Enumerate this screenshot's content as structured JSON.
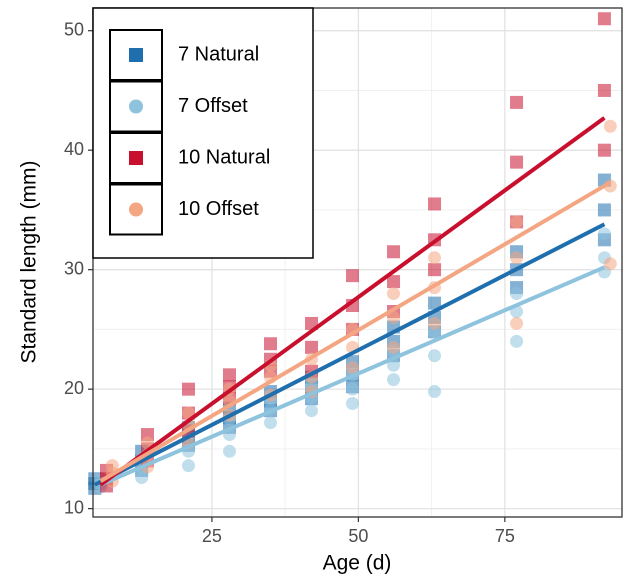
{
  "chart_data": {
    "type": "scatter",
    "x_label": "Age (d)",
    "y_label": "Standard length (mm)",
    "xlim": [
      4.7,
      95
    ],
    "ylim": [
      9.3,
      51.9
    ],
    "xticks": [
      25,
      50,
      75
    ],
    "yticks": [
      10,
      20,
      30,
      40,
      50
    ],
    "grid": true,
    "legend": "top-left",
    "series": [
      {
        "name": "7 Natural",
        "color": "#1f6fae",
        "marker": "square",
        "x": [
          5,
          5,
          5,
          13,
          13,
          13,
          21,
          21,
          21,
          28,
          28,
          28,
          35,
          35,
          35,
          42,
          42,
          42,
          49,
          49,
          49,
          56,
          56,
          56,
          63,
          63,
          63,
          77,
          77,
          77,
          92,
          92,
          92
        ],
        "values": [
          11.7,
          12.1,
          12.5,
          13.2,
          14,
          14.8,
          15.3,
          16,
          16.8,
          16.8,
          17.6,
          18.4,
          18.2,
          19,
          19.8,
          19.2,
          20.1,
          21,
          20.2,
          21.2,
          22.3,
          22.8,
          24,
          25.2,
          24.8,
          26,
          27.2,
          28.5,
          30,
          31.5,
          32.5,
          35,
          37.5
        ],
        "fit_x": [
          5,
          92
        ],
        "fit_values": [
          12.0,
          33.8
        ]
      },
      {
        "name": "7 Offset",
        "color": "#8ec3de",
        "marker": "circle",
        "x": [
          6,
          6,
          6,
          13,
          13,
          13,
          21,
          21,
          21,
          28,
          28,
          28,
          35,
          35,
          35,
          42,
          42,
          42,
          49,
          49,
          49,
          56,
          56,
          56,
          63,
          63,
          63,
          77,
          77,
          77,
          92,
          92,
          92
        ],
        "values": [
          11.8,
          12.1,
          12.5,
          12.6,
          13.4,
          14.2,
          13.6,
          14.8,
          16,
          14.8,
          16.2,
          17.5,
          17.2,
          18.3,
          19.3,
          18.2,
          19.3,
          20.3,
          18.8,
          20,
          21.2,
          20.8,
          22,
          23.2,
          19.8,
          22.8,
          24.8,
          24,
          26.5,
          28,
          29.8,
          31,
          33
        ],
        "fit_x": [
          6,
          92
        ],
        "fit_values": [
          12.0,
          30.2
        ]
      },
      {
        "name": "10 Natural",
        "color": "#c8102e",
        "marker": "square",
        "x": [
          7,
          7,
          7,
          14,
          14,
          14,
          21,
          21,
          21,
          28,
          28,
          28,
          35,
          35,
          35,
          42,
          42,
          42,
          49,
          49,
          49,
          56,
          56,
          56,
          63,
          63,
          63,
          77,
          77,
          77,
          92,
          92,
          92
        ],
        "values": [
          11.9,
          12.5,
          13.2,
          14,
          15,
          16.2,
          16.5,
          18,
          20,
          19.2,
          20.2,
          21.2,
          21.5,
          22.5,
          23.8,
          21.5,
          23.5,
          25.5,
          25,
          27,
          29.5,
          26.5,
          29,
          31.5,
          30,
          32.5,
          35.5,
          34,
          39,
          44,
          40,
          45,
          51
        ],
        "fit_x": [
          6,
          92
        ],
        "fit_values": [
          12.0,
          42.7
        ]
      },
      {
        "name": "10 Offset",
        "color": "#f4a582",
        "marker": "circle",
        "x": [
          8,
          8,
          8,
          14,
          14,
          14,
          21,
          21,
          21,
          28,
          28,
          28,
          35,
          35,
          35,
          42,
          42,
          42,
          49,
          49,
          49,
          56,
          56,
          56,
          63,
          63,
          63,
          77,
          77,
          77,
          93,
          93,
          93
        ],
        "values": [
          12.3,
          13,
          13.6,
          13.5,
          14.5,
          15.5,
          15.5,
          17,
          18,
          17.8,
          19,
          20,
          19.5,
          21,
          22,
          19.8,
          21,
          22.5,
          21.8,
          23.5,
          25,
          23.5,
          26,
          28,
          25.5,
          28.5,
          31,
          25.5,
          31,
          34,
          30.5,
          37,
          42
        ],
        "fit_x": [
          6,
          93
        ],
        "fit_values": [
          12.3,
          37.3
        ]
      }
    ]
  }
}
